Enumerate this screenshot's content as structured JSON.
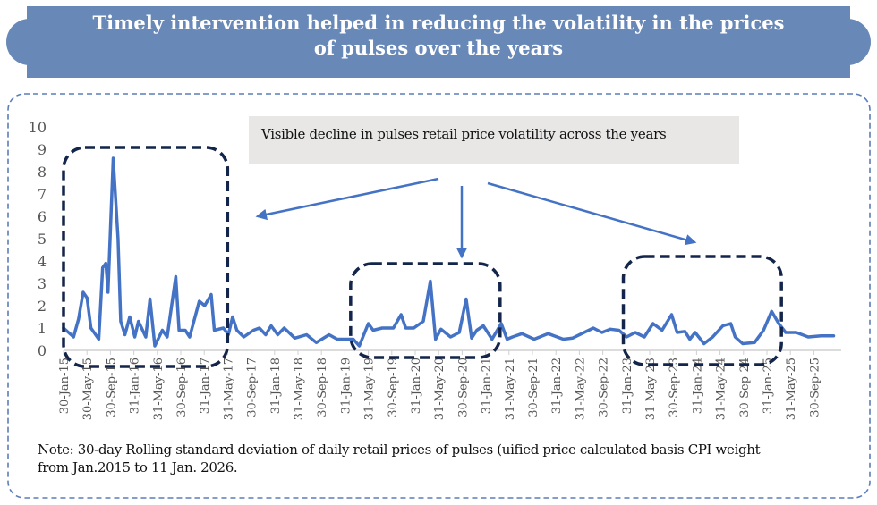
{
  "header": {
    "title_line1": "Timely intervention helped in reducing the volatility in the prices",
    "title_line2": "of pulses over the years"
  },
  "annotation": {
    "text": "Visible decline in pulses retail price volatility across the years"
  },
  "note": {
    "line1": "Note: 30-day Rolling standard deviation of daily retail prices of pulses (uified price calculated basis CPI weight",
    "line2": "from Jan.2015 to 11 Jan. 2026."
  },
  "colors": {
    "banner": "#6889b8",
    "series": "#4472c4",
    "highlight_box": "#13254a",
    "annotation_bg": "#e8e7e6",
    "panel_border": "#5b7db8",
    "arrow": "#4472c4"
  },
  "chart_data": {
    "type": "line",
    "title": "",
    "xlabel": "",
    "ylabel": "",
    "ylim": [
      0,
      10
    ],
    "yticks": [
      "0",
      "1",
      "2",
      "3",
      "4",
      "5",
      "6",
      "7",
      "8",
      "9",
      "10"
    ],
    "grid": false,
    "xtick_labels": [
      "30-Jan-15",
      "30-May-15",
      "30-Sep-15",
      "31-Jan-16",
      "31-May-16",
      "30-Sep-16",
      "31-Jan-17",
      "31-May-17",
      "30-Sep-17",
      "31-Jan-18",
      "31-May-18",
      "30-Sep-18",
      "31-Jan-19",
      "31-May-19",
      "30-Sep-19",
      "31-Jan-20",
      "31-May-20",
      "30-Sep-20",
      "31-Jan-21",
      "31-May-21",
      "30-Sep-21",
      "31-Jan-22",
      "31-May-22",
      "30-Sep-22",
      "31-Jan-23",
      "31-May-23",
      "30-Sep-23",
      "31-Jan-24",
      "31-May-24",
      "30-Sep-24",
      "31-Jan-25",
      "31-May-25",
      "30-Sep-25"
    ],
    "highlighted_periods": [
      {
        "from": "2015-01-30",
        "to": "2017-05-31"
      },
      {
        "from": "2019-03-01",
        "to": "2021-04-15"
      },
      {
        "from": "2023-01-15",
        "to": "2025-04-15"
      }
    ],
    "series": [
      {
        "points": [
          [
            "2015-01-30",
            1.0
          ],
          [
            "2015-03-23",
            0.6
          ],
          [
            "2015-04-18",
            1.4
          ],
          [
            "2015-05-12",
            2.6
          ],
          [
            "2015-06-01",
            2.35
          ],
          [
            "2015-06-21",
            1.0
          ],
          [
            "2015-08-01",
            0.5
          ],
          [
            "2015-08-21",
            3.7
          ],
          [
            "2015-09-07",
            3.9
          ],
          [
            "2015-09-18",
            2.6
          ],
          [
            "2015-10-15",
            8.6
          ],
          [
            "2015-11-09",
            5.0
          ],
          [
            "2015-11-23",
            1.3
          ],
          [
            "2015-12-15",
            0.7
          ],
          [
            "2016-01-09",
            1.5
          ],
          [
            "2016-02-04",
            0.6
          ],
          [
            "2016-02-23",
            1.3
          ],
          [
            "2016-04-01",
            0.6
          ],
          [
            "2016-04-23",
            2.3
          ],
          [
            "2016-05-18",
            0.2
          ],
          [
            "2016-06-26",
            0.9
          ],
          [
            "2016-07-21",
            0.6
          ],
          [
            "2016-09-04",
            3.3
          ],
          [
            "2016-09-21",
            0.9
          ],
          [
            "2016-10-23",
            0.9
          ],
          [
            "2016-11-15",
            0.6
          ],
          [
            "2017-01-04",
            2.2
          ],
          [
            "2017-02-01",
            2.0
          ],
          [
            "2017-03-07",
            2.5
          ],
          [
            "2017-03-23",
            0.9
          ],
          [
            "2017-05-09",
            1.0
          ],
          [
            "2017-06-04",
            0.7
          ],
          [
            "2017-06-26",
            1.5
          ],
          [
            "2017-07-18",
            0.9
          ],
          [
            "2017-08-23",
            0.6
          ],
          [
            "2017-10-12",
            0.9
          ],
          [
            "2017-11-12",
            1.0
          ],
          [
            "2017-12-15",
            0.7
          ],
          [
            "2018-01-12",
            1.1
          ],
          [
            "2018-02-15",
            0.7
          ],
          [
            "2018-03-21",
            1.0
          ],
          [
            "2018-05-15",
            0.55
          ],
          [
            "2018-07-15",
            0.7
          ],
          [
            "2018-09-04",
            0.35
          ],
          [
            "2018-11-09",
            0.7
          ],
          [
            "2018-12-21",
            0.5
          ],
          [
            "2019-03-15",
            0.5
          ],
          [
            "2019-04-15",
            0.2
          ],
          [
            "2019-06-01",
            1.2
          ],
          [
            "2019-06-26",
            0.9
          ],
          [
            "2019-08-12",
            1.0
          ],
          [
            "2019-10-09",
            1.0
          ],
          [
            "2019-11-18",
            1.6
          ],
          [
            "2019-12-12",
            1.0
          ],
          [
            "2020-01-23",
            1.0
          ],
          [
            "2020-03-12",
            1.3
          ],
          [
            "2020-04-18",
            3.1
          ],
          [
            "2020-05-15",
            0.5
          ],
          [
            "2020-06-12",
            0.95
          ],
          [
            "2020-08-01",
            0.6
          ],
          [
            "2020-09-15",
            0.8
          ],
          [
            "2020-10-21",
            2.3
          ],
          [
            "2020-11-18",
            0.55
          ],
          [
            "2020-12-15",
            0.9
          ],
          [
            "2021-01-18",
            1.1
          ],
          [
            "2021-03-04",
            0.5
          ],
          [
            "2021-04-21",
            1.2
          ],
          [
            "2021-05-21",
            0.5
          ],
          [
            "2021-06-18",
            0.6
          ],
          [
            "2021-08-07",
            0.75
          ],
          [
            "2021-10-09",
            0.5
          ],
          [
            "2021-12-21",
            0.75
          ],
          [
            "2022-03-09",
            0.5
          ],
          [
            "2022-04-26",
            0.55
          ],
          [
            "2022-08-12",
            1.0
          ],
          [
            "2022-09-26",
            0.8
          ],
          [
            "2022-11-09",
            0.95
          ],
          [
            "2022-12-23",
            0.9
          ],
          [
            "2023-02-01",
            0.6
          ],
          [
            "2023-03-18",
            0.8
          ],
          [
            "2023-05-04",
            0.6
          ],
          [
            "2023-06-18",
            1.2
          ],
          [
            "2023-08-04",
            0.9
          ],
          [
            "2023-09-23",
            1.6
          ],
          [
            "2023-10-21",
            0.8
          ],
          [
            "2023-12-01",
            0.85
          ],
          [
            "2023-12-26",
            0.5
          ],
          [
            "2024-01-23",
            0.8
          ],
          [
            "2024-03-09",
            0.3
          ],
          [
            "2024-04-23",
            0.6
          ],
          [
            "2024-06-15",
            1.1
          ],
          [
            "2024-07-26",
            1.2
          ],
          [
            "2024-08-18",
            0.6
          ],
          [
            "2024-09-26",
            0.3
          ],
          [
            "2024-11-26",
            0.35
          ],
          [
            "2025-01-12",
            0.9
          ],
          [
            "2025-02-23",
            1.75
          ],
          [
            "2025-04-01",
            1.2
          ],
          [
            "2025-05-07",
            0.8
          ],
          [
            "2025-07-01",
            0.8
          ],
          [
            "2025-09-01",
            0.6
          ],
          [
            "2025-11-07",
            0.65
          ],
          [
            "2026-01-11",
            0.65
          ]
        ]
      }
    ]
  }
}
